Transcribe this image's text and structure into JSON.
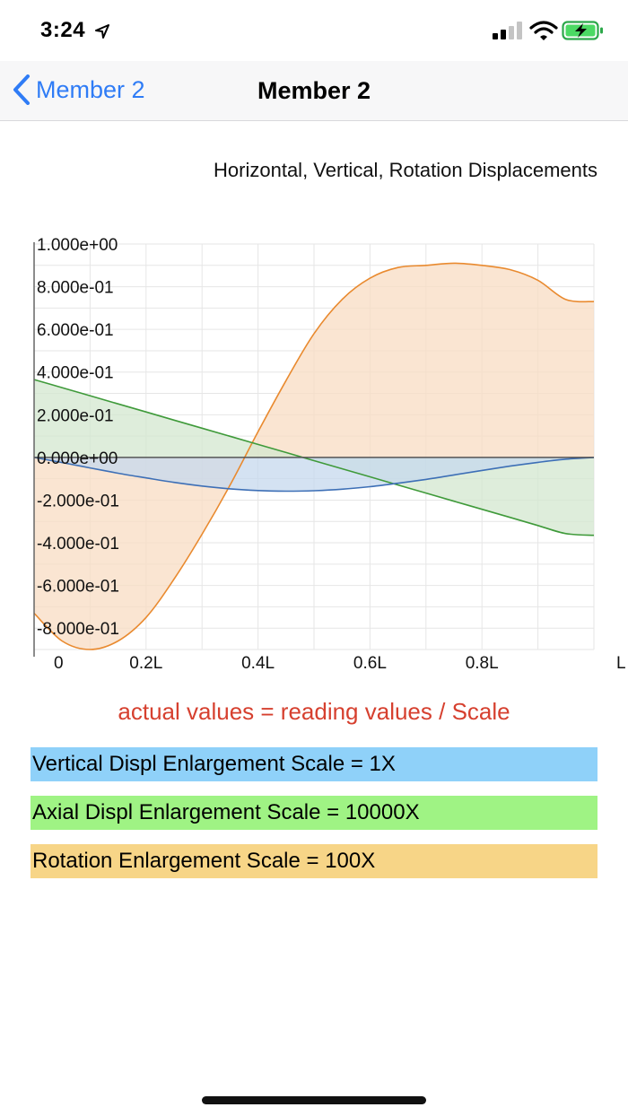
{
  "status_bar": {
    "time": "3:24"
  },
  "nav": {
    "back_label": "Member 2",
    "title": "Member 2"
  },
  "chart_data": {
    "type": "area",
    "title": "Horizontal, Vertical, Rotation Displacements",
    "xlabel": "",
    "ylabel": "",
    "x_tick_labels": [
      "0",
      "0.2L",
      "0.4L",
      "0.6L",
      "0.8L",
      "L"
    ],
    "x": [
      0,
      0.05,
      0.1,
      0.15,
      0.2,
      0.25,
      0.3,
      0.35,
      0.4,
      0.45,
      0.5,
      0.55,
      0.6,
      0.65,
      0.7,
      0.75,
      0.8,
      0.85,
      0.9,
      0.95,
      1.0
    ],
    "xlim": [
      0,
      1
    ],
    "ylim": [
      -0.9,
      1.0
    ],
    "y_ticks": [
      1.0,
      0.8,
      0.6,
      0.4,
      0.2,
      0.0,
      -0.2,
      -0.4,
      -0.6,
      -0.8
    ],
    "y_tick_labels": [
      "1.000e+00",
      "8.000e-01",
      "6.000e-01",
      "4.000e-01",
      "2.000e-01",
      "0.000e+00",
      "-2.000e-01",
      "-4.000e-01",
      "-6.000e-01",
      "-8.000e-01"
    ],
    "grid": true,
    "series": [
      {
        "name": "Vertical Displacement",
        "color": "#3d6fb6",
        "fill": "#c6d8ee",
        "values": [
          0.0,
          -0.024,
          -0.049,
          -0.074,
          -0.096,
          -0.117,
          -0.134,
          -0.147,
          -0.155,
          -0.158,
          -0.156,
          -0.149,
          -0.137,
          -0.121,
          -0.103,
          -0.082,
          -0.061,
          -0.041,
          -0.023,
          -0.008,
          0.0
        ]
      },
      {
        "name": "Axial Displacement",
        "color": "#3f9a3a",
        "fill": "#d3e7cf",
        "values": [
          0.365,
          0.327,
          0.289,
          0.251,
          0.213,
          0.175,
          0.137,
          0.099,
          0.061,
          0.023,
          -0.015,
          -0.053,
          -0.091,
          -0.129,
          -0.167,
          -0.205,
          -0.243,
          -0.281,
          -0.319,
          -0.357,
          -0.365
        ]
      },
      {
        "name": "Rotation",
        "color": "#e98a2f",
        "fill": "#f8dcc3",
        "values": [
          -0.73,
          -0.86,
          -0.9,
          -0.86,
          -0.75,
          -0.57,
          -0.36,
          -0.13,
          0.12,
          0.36,
          0.58,
          0.74,
          0.84,
          0.89,
          0.9,
          0.91,
          0.9,
          0.88,
          0.83,
          0.74,
          0.73
        ]
      }
    ]
  },
  "note": {
    "text": "actual values = reading values / Scale"
  },
  "legend": [
    {
      "label": "Vertical Displ Enlargement Scale = 1X",
      "color": "#8fd1f9"
    },
    {
      "label": "Axial Displ Enlargement Scale = 10000X",
      "color": "#9ff384"
    },
    {
      "label": "Rotation Enlargement Scale = 100X",
      "color": "#f7d587"
    }
  ]
}
